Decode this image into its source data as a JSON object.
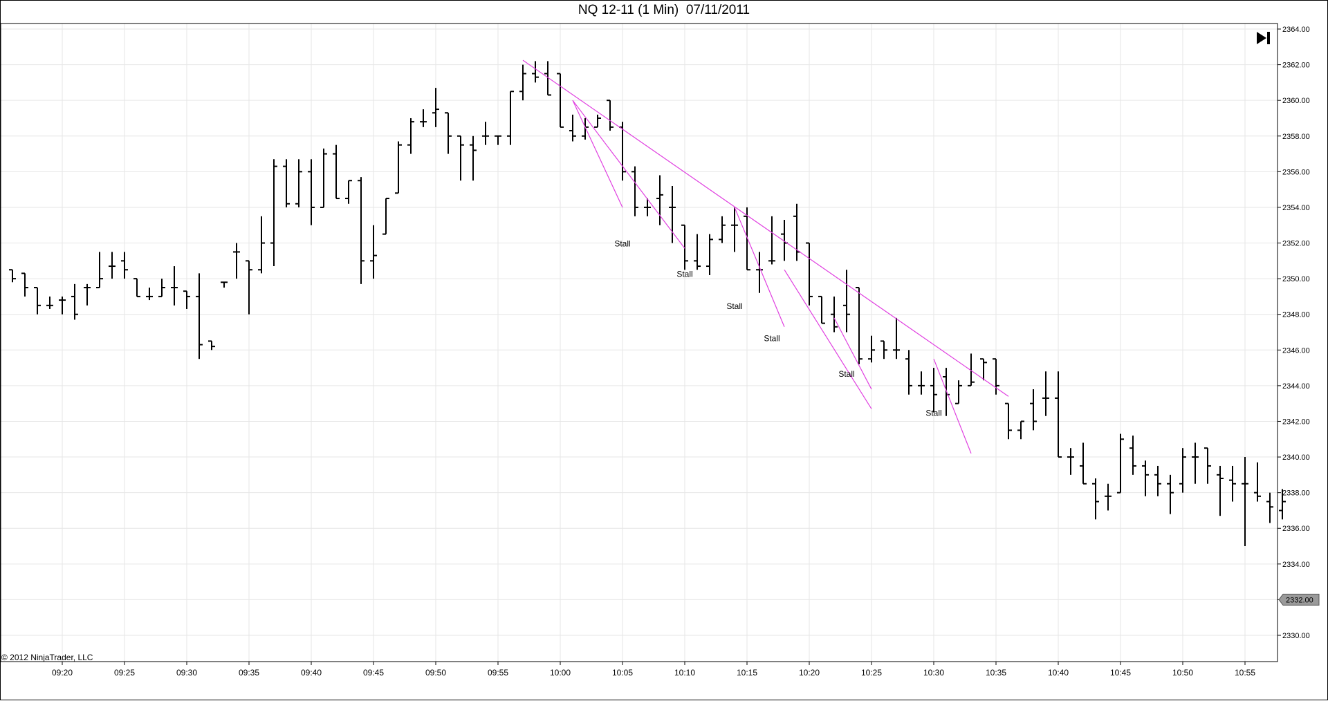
{
  "window": {
    "title": "NQ 12-11 (1 Min)  07/11/2011",
    "copyright": "© 2012 NinjaTrader, LLC"
  },
  "toolbar": {
    "jump_icon": "skip-to-end-icon"
  },
  "chart_data": {
    "type": "ohlc",
    "title": "NQ 12-11 (1 Min)  07/11/2011",
    "xlabel": "",
    "ylabel": "",
    "ylim": [
      2329,
      2364.25
    ],
    "xlim": [
      "09:16",
      "10:58"
    ],
    "grid": true,
    "y_axis_side": "right",
    "y_ticks": [
      "2330.00",
      "2332.00",
      "2334.00",
      "2336.00",
      "2338.00",
      "2340.00",
      "2342.00",
      "2344.00",
      "2346.00",
      "2348.00",
      "2350.00",
      "2352.00",
      "2354.00",
      "2356.00",
      "2358.00",
      "2360.00",
      "2362.00",
      "2364.00"
    ],
    "x_ticks": [
      "09:20",
      "09:25",
      "09:30",
      "09:35",
      "09:40",
      "09:45",
      "09:50",
      "09:55",
      "10:00",
      "10:05",
      "10:10",
      "10:15",
      "10:20",
      "10:25",
      "10:30",
      "10:35",
      "10:40",
      "10:45",
      "10:50",
      "10:55"
    ],
    "bars": [
      [
        "09:16",
        2350.5,
        2350.5,
        2349.8,
        2350.0
      ],
      [
        "09:17",
        2350.3,
        2350.3,
        2349.0,
        2349.5
      ],
      [
        "09:18",
        2349.5,
        2349.5,
        2348.0,
        2348.5
      ],
      [
        "09:19",
        2348.5,
        2349.0,
        2348.3,
        2348.5
      ],
      [
        "09:20",
        2348.8,
        2349.0,
        2348.0,
        2348.8
      ],
      [
        "09:21",
        2349.0,
        2349.7,
        2347.7,
        2348.0
      ],
      [
        "09:22",
        2349.5,
        2349.7,
        2348.5,
        2349.5
      ],
      [
        "09:23",
        2349.5,
        2351.5,
        2349.5,
        2350.0
      ],
      [
        "09:24",
        2350.7,
        2351.5,
        2350.0,
        2350.7
      ],
      [
        "09:25",
        2351.0,
        2351.5,
        2350.0,
        2350.5
      ],
      [
        "09:26",
        2350.0,
        2350.0,
        2349.0,
        2349.0
      ],
      [
        "09:27",
        2349.0,
        2349.5,
        2348.8,
        2349.0
      ],
      [
        "09:28",
        2349.0,
        2350.0,
        2349.0,
        2349.5
      ],
      [
        "09:29",
        2349.5,
        2350.7,
        2348.5,
        2349.5
      ],
      [
        "09:30",
        2349.3,
        2349.3,
        2348.3,
        2349.0
      ],
      [
        "09:31",
        2349.0,
        2350.3,
        2345.5,
        2346.3
      ],
      [
        "09:32",
        2346.5,
        2346.5,
        2346.0,
        2346.2
      ],
      [
        "09:33",
        2349.8,
        2349.8,
        2349.5,
        2349.8
      ],
      [
        "09:34",
        2351.5,
        2352.0,
        2350.0,
        2351.5
      ],
      [
        "09:35",
        2351.0,
        2351.0,
        2348.0,
        2350.5
      ],
      [
        "09:36",
        2350.5,
        2353.5,
        2350.3,
        2352.0
      ],
      [
        "09:37",
        2352.0,
        2356.7,
        2350.7,
        2356.3
      ],
      [
        "09:38",
        2356.3,
        2356.7,
        2354.0,
        2354.2
      ],
      [
        "09:39",
        2354.2,
        2356.7,
        2354.0,
        2356.0
      ],
      [
        "09:40",
        2356.0,
        2356.7,
        2353.0,
        2354.0
      ],
      [
        "09:41",
        2354.0,
        2357.3,
        2354.0,
        2357.0
      ],
      [
        "09:42",
        2357.0,
        2357.5,
        2354.5,
        2354.5
      ],
      [
        "09:43",
        2354.5,
        2355.5,
        2354.2,
        2355.5
      ],
      [
        "09:44",
        2355.5,
        2355.7,
        2349.7,
        2351.0
      ],
      [
        "09:45",
        2351.0,
        2353.0,
        2350.0,
        2351.3
      ],
      [
        "09:46",
        2352.5,
        2354.5,
        2352.5,
        2354.5
      ],
      [
        "09:47",
        2354.8,
        2357.7,
        2354.8,
        2357.5
      ],
      [
        "09:48",
        2357.5,
        2359.0,
        2357.0,
        2358.8
      ],
      [
        "09:49",
        2358.8,
        2359.5,
        2358.5,
        2358.8
      ],
      [
        "09:50",
        2359.3,
        2360.7,
        2358.5,
        2359.5
      ],
      [
        "09:51",
        2359.3,
        2359.3,
        2357.0,
        2358.0
      ],
      [
        "09:52",
        2358.0,
        2358.0,
        2355.5,
        2357.5
      ],
      [
        "09:53",
        2357.5,
        2358.0,
        2355.5,
        2357.2
      ],
      [
        "09:54",
        2358.0,
        2358.8,
        2357.5,
        2358.0
      ],
      [
        "09:55",
        2358.0,
        2358.0,
        2357.5,
        2358.0
      ],
      [
        "09:56",
        2358.0,
        2360.5,
        2357.5,
        2360.5
      ],
      [
        "09:57",
        2360.5,
        2362.0,
        2360.0,
        2361.5
      ],
      [
        "09:58",
        2361.5,
        2362.2,
        2361.0,
        2361.3
      ],
      [
        "09:59",
        2361.5,
        2362.2,
        2360.3,
        2360.3
      ],
      [
        "10:00",
        2361.5,
        2361.5,
        2358.5,
        2358.5
      ],
      [
        "10:01",
        2358.3,
        2359.2,
        2357.7,
        2358.0
      ],
      [
        "10:02",
        2358.0,
        2359.0,
        2357.8,
        2358.5
      ],
      [
        "10:03",
        2358.5,
        2359.2,
        2358.5,
        2359.0
      ],
      [
        "10:04",
        2360.0,
        2360.0,
        2358.3,
        2358.5
      ],
      [
        "10:05",
        2358.5,
        2358.8,
        2355.5,
        2356.0
      ],
      [
        "10:06",
        2356.0,
        2356.3,
        2353.5,
        2354.0
      ],
      [
        "10:07",
        2354.0,
        2354.5,
        2353.5,
        2354.0
      ],
      [
        "10:08",
        2354.5,
        2355.8,
        2353.0,
        2354.7
      ],
      [
        "10:09",
        2354.0,
        2355.2,
        2352.0,
        2354.0
      ],
      [
        "10:10",
        2353.0,
        2353.0,
        2350.5,
        2351.0
      ],
      [
        "10:11",
        2351.0,
        2352.5,
        2350.5,
        2350.7
      ],
      [
        "10:12",
        2350.7,
        2352.5,
        2350.2,
        2352.2
      ],
      [
        "10:13",
        2352.2,
        2353.5,
        2352.0,
        2353.0
      ],
      [
        "10:14",
        2353.0,
        2354.0,
        2351.5,
        2353.0
      ],
      [
        "10:15",
        2353.5,
        2354.0,
        2350.5,
        2350.5
      ],
      [
        "10:16",
        2350.5,
        2351.5,
        2349.2,
        2350.5
      ],
      [
        "10:17",
        2351.0,
        2353.5,
        2350.8,
        2351.0
      ],
      [
        "10:18",
        2352.5,
        2353.3,
        2351.0,
        2352.0
      ],
      [
        "10:19",
        2353.5,
        2354.2,
        2351.0,
        2351.5
      ],
      [
        "10:20",
        2352.0,
        2352.0,
        2348.5,
        2349.0
      ],
      [
        "10:21",
        2349.0,
        2349.0,
        2347.5,
        2347.5
      ],
      [
        "10:22",
        2348.0,
        2349.0,
        2347.0,
        2347.3
      ],
      [
        "10:23",
        2348.5,
        2350.5,
        2347.0,
        2348.0
      ],
      [
        "10:24",
        2349.5,
        2349.5,
        2345.2,
        2345.5
      ],
      [
        "10:25",
        2345.5,
        2346.8,
        2345.3,
        2346.0
      ],
      [
        "10:26",
        2346.5,
        2346.5,
        2345.5,
        2346.0
      ],
      [
        "10:27",
        2346.0,
        2347.8,
        2345.5,
        2346.0
      ],
      [
        "10:28",
        2345.5,
        2346.0,
        2343.5,
        2344.0
      ],
      [
        "10:29",
        2344.0,
        2344.8,
        2343.5,
        2344.0
      ],
      [
        "10:30",
        2344.0,
        2345.0,
        2342.5,
        2343.5
      ],
      [
        "10:31",
        2344.5,
        2345.0,
        2342.3,
        2343.5
      ],
      [
        "10:32",
        2343.0,
        2344.3,
        2343.0,
        2344.0
      ],
      [
        "10:33",
        2344.0,
        2345.8,
        2344.0,
        2344.2
      ],
      [
        "10:34",
        2345.5,
        2345.5,
        2344.3,
        2345.3
      ],
      [
        "10:35",
        2345.5,
        2345.5,
        2343.5,
        2344.0
      ],
      [
        "10:36",
        2343.0,
        2343.0,
        2341.0,
        2341.5
      ],
      [
        "10:37",
        2341.5,
        2342.0,
        2341.0,
        2342.0
      ],
      [
        "10:38",
        2343.0,
        2343.8,
        2341.5,
        2342.0
      ],
      [
        "10:39",
        2343.3,
        2344.8,
        2342.3,
        2343.3
      ],
      [
        "10:40",
        2343.3,
        2344.8,
        2340.0,
        2340.0
      ],
      [
        "10:41",
        2340.0,
        2340.5,
        2339.0,
        2340.0
      ],
      [
        "10:42",
        2339.5,
        2340.8,
        2338.5,
        2338.5
      ],
      [
        "10:43",
        2338.5,
        2338.8,
        2336.5,
        2337.5
      ],
      [
        "10:44",
        2337.8,
        2338.5,
        2337.0,
        2337.8
      ],
      [
        "10:45",
        2338.0,
        2341.3,
        2338.0,
        2341.0
      ],
      [
        "10:46",
        2340.5,
        2341.2,
        2339.0,
        2339.5
      ],
      [
        "10:47",
        2339.5,
        2339.8,
        2337.8,
        2339.0
      ],
      [
        "10:48",
        2339.0,
        2339.5,
        2337.8,
        2338.5
      ],
      [
        "10:49",
        2338.5,
        2339.0,
        2336.8,
        2338.0
      ],
      [
        "10:50",
        2338.5,
        2340.5,
        2338.0,
        2340.0
      ],
      [
        "10:51",
        2340.0,
        2340.8,
        2338.5,
        2340.0
      ],
      [
        "10:52",
        2340.5,
        2340.5,
        2338.5,
        2339.5
      ],
      [
        "10:53",
        2339.0,
        2339.5,
        2336.7,
        2338.8
      ],
      [
        "10:54",
        2338.7,
        2339.5,
        2337.5,
        2338.5
      ],
      [
        "10:55",
        2338.5,
        2340.0,
        2335.0,
        2338.5
      ],
      [
        "10:56",
        2338.0,
        2339.7,
        2337.5,
        2337.8
      ],
      [
        "10:57",
        2337.5,
        2338.0,
        2336.3,
        2337.2
      ],
      [
        "10:58",
        2337.0,
        2338.2,
        2336.5,
        2337.5
      ]
    ],
    "current_price": "2332.00",
    "trendlines": [
      {
        "from": [
          "09:57",
          2362.25
        ],
        "to": [
          "10:36",
          2343.4
        ]
      },
      {
        "from": [
          "10:01",
          2360.0
        ],
        "to": [
          "10:05",
          2354.0
        ]
      },
      {
        "from": [
          "10:01",
          2360.0
        ],
        "to": [
          "10:10",
          2351.7
        ]
      },
      {
        "from": [
          "10:14",
          2354.0
        ],
        "to": [
          "10:18",
          2347.3
        ]
      },
      {
        "from": [
          "10:18",
          2350.5
        ],
        "to": [
          "10:25",
          2342.7
        ]
      },
      {
        "from": [
          "10:22",
          2347.8
        ],
        "to": [
          "10:25",
          2343.8
        ]
      },
      {
        "from": [
          "10:30",
          2345.5
        ],
        "to": [
          "10:33",
          2340.2
        ]
      }
    ],
    "annotations": [
      {
        "text": "Stall",
        "x": "10:05",
        "y": 2351.8
      },
      {
        "text": "Stall",
        "x": "10:10",
        "y": 2350.1
      },
      {
        "text": "Stall",
        "x": "10:14",
        "y": 2348.3
      },
      {
        "text": "Stall",
        "x": "10:17",
        "y": 2346.5
      },
      {
        "text": "Stall",
        "x": "10:23",
        "y": 2344.5
      },
      {
        "text": "Stall",
        "x": "10:30",
        "y": 2342.3
      }
    ],
    "colors": {
      "bars": "#000000",
      "trendline": "#e040e0",
      "grid": "#e6e6e6",
      "price_marker": "#9a9a9a"
    }
  }
}
